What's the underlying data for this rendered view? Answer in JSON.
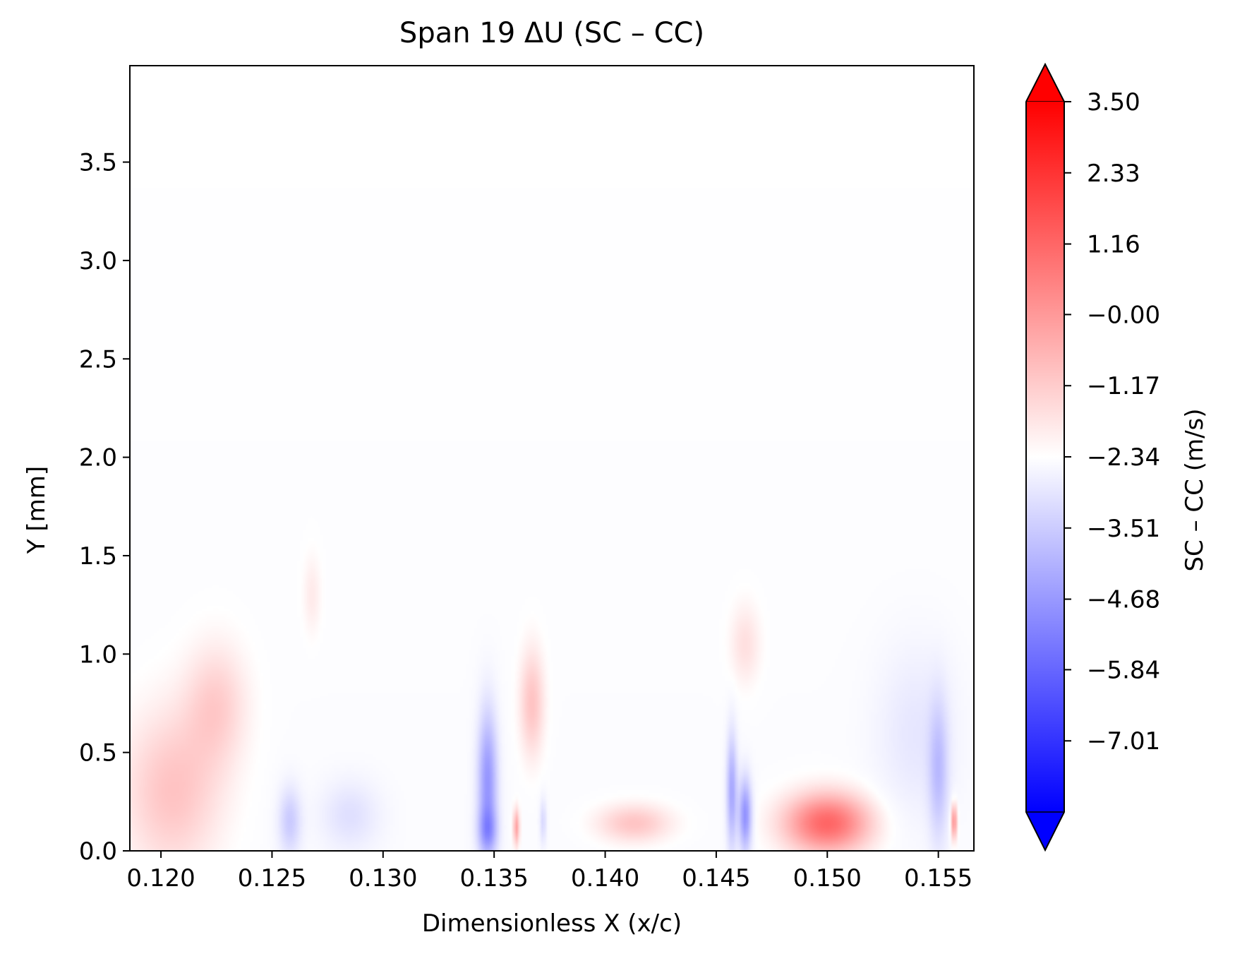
{
  "chart_data": {
    "type": "heatmap",
    "title": "Span 19  ΔU (SC – CC)",
    "xlabel": "Dimensionless X (x/c)",
    "ylabel": "Y [mm]",
    "xlim": [
      0.1186,
      0.1566
    ],
    "ylim": [
      0.0,
      3.99
    ],
    "x_ticks": [
      "0.120",
      "0.125",
      "0.130",
      "0.135",
      "0.140",
      "0.145",
      "0.150",
      "0.155"
    ],
    "x_tick_values": [
      0.12,
      0.125,
      0.13,
      0.135,
      0.14,
      0.145,
      0.15,
      0.155
    ],
    "y_ticks": [
      "0.0",
      "0.5",
      "1.0",
      "1.5",
      "2.0",
      "2.5",
      "3.0",
      "3.5"
    ],
    "y_tick_values": [
      0.0,
      0.5,
      1.0,
      1.5,
      2.0,
      2.5,
      3.0,
      3.5
    ],
    "colormap": "bwr",
    "colorbar": {
      "label": "SC – CC  (m/s)",
      "vmin": -8.18,
      "vmax": 3.5,
      "extend": "both",
      "tick_labels": [
        "3.50",
        "2.33",
        "1.16",
        "−0.00",
        "−1.17",
        "−2.34",
        "−3.51",
        "−4.68",
        "−5.84",
        "−7.01"
      ],
      "tick_values": [
        3.5,
        2.33,
        1.16,
        0.0,
        -1.17,
        -2.34,
        -3.51,
        -4.68,
        -5.84,
        -7.01
      ]
    },
    "background_value": -0.1,
    "features": [
      {
        "x": 0.1205,
        "y": 0.3,
        "sx": 0.0016,
        "sy": 0.3,
        "value": 0.9
      },
      {
        "x": 0.1225,
        "y": 0.75,
        "sx": 0.001,
        "sy": 0.22,
        "value": 0.7
      },
      {
        "x": 0.1258,
        "y": 0.15,
        "sx": 0.00035,
        "sy": 0.12,
        "value": -1.6
      },
      {
        "x": 0.1285,
        "y": 0.18,
        "sx": 0.0009,
        "sy": 0.12,
        "value": -0.9
      },
      {
        "x": 0.1268,
        "y": 1.3,
        "sx": 0.0003,
        "sy": 0.15,
        "value": 0.35
      },
      {
        "x": 0.1347,
        "y": 0.35,
        "sx": 0.0003,
        "sy": 0.25,
        "value": -3.3
      },
      {
        "x": 0.1347,
        "y": 0.1,
        "sx": 0.0003,
        "sy": 0.08,
        "value": -2.2
      },
      {
        "x": 0.1367,
        "y": 0.75,
        "sx": 0.0004,
        "sy": 0.2,
        "value": 0.9
      },
      {
        "x": 0.136,
        "y": 0.12,
        "sx": 0.0001,
        "sy": 0.07,
        "value": 1.4
      },
      {
        "x": 0.1372,
        "y": 0.15,
        "sx": 0.0001,
        "sy": 0.08,
        "value": -1.2
      },
      {
        "x": 0.1413,
        "y": 0.14,
        "sx": 0.0012,
        "sy": 0.07,
        "value": 0.9
      },
      {
        "x": 0.1457,
        "y": 0.3,
        "sx": 0.00016,
        "sy": 0.2,
        "value": -2.8
      },
      {
        "x": 0.1463,
        "y": 0.18,
        "sx": 0.0002,
        "sy": 0.13,
        "value": -3.5
      },
      {
        "x": 0.1463,
        "y": 1.05,
        "sx": 0.0005,
        "sy": 0.15,
        "value": 0.5
      },
      {
        "x": 0.15,
        "y": 0.14,
        "sx": 0.0014,
        "sy": 0.11,
        "value": 2.2
      },
      {
        "x": 0.155,
        "y": 0.4,
        "sx": 0.0003,
        "sy": 0.25,
        "value": -1.8
      },
      {
        "x": 0.1557,
        "y": 0.15,
        "sx": 0.0001,
        "sy": 0.07,
        "value": 1.8
      },
      {
        "x": 0.154,
        "y": 0.6,
        "sx": 0.0012,
        "sy": 0.3,
        "value": -0.7
      }
    ],
    "grid": false
  }
}
